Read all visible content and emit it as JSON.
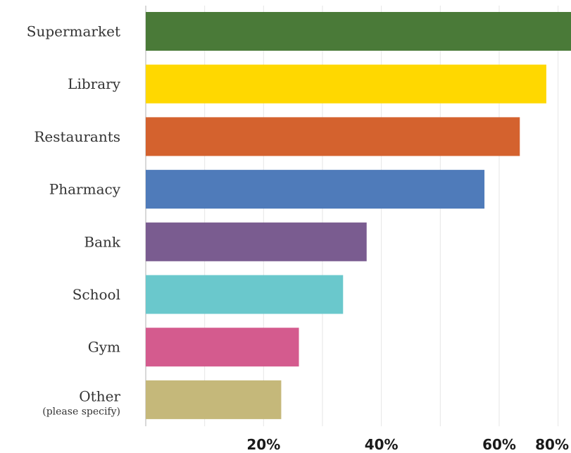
{
  "chart_data": {
    "type": "bar",
    "orientation": "horizontal",
    "categories": [
      {
        "label": "Supermarket",
        "sublabel": ""
      },
      {
        "label": "Library",
        "sublabel": ""
      },
      {
        "label": "Restaurants",
        "sublabel": ""
      },
      {
        "label": "Pharmacy",
        "sublabel": ""
      },
      {
        "label": "Bank",
        "sublabel": ""
      },
      {
        "label": "School",
        "sublabel": ""
      },
      {
        "label": "Gym",
        "sublabel": ""
      },
      {
        "label": "Other",
        "sublabel": "(please specify)"
      }
    ],
    "values": [
      76,
      68,
      63.5,
      57.5,
      37.5,
      33.5,
      26,
      23
    ],
    "colors": [
      "#4a7a38",
      "#ffd800",
      "#d4622e",
      "#4f7bba",
      "#7a5c90",
      "#6ac8cc",
      "#d45b8e",
      "#c5b87a"
    ],
    "xlim": [
      0,
      80
    ],
    "x_ticks": [
      20,
      40,
      60,
      80
    ],
    "x_tick_labels": [
      "20%",
      "40%",
      "60%",
      "80%"
    ],
    "grid": true,
    "title": "",
    "xlabel": "",
    "ylabel": ""
  }
}
